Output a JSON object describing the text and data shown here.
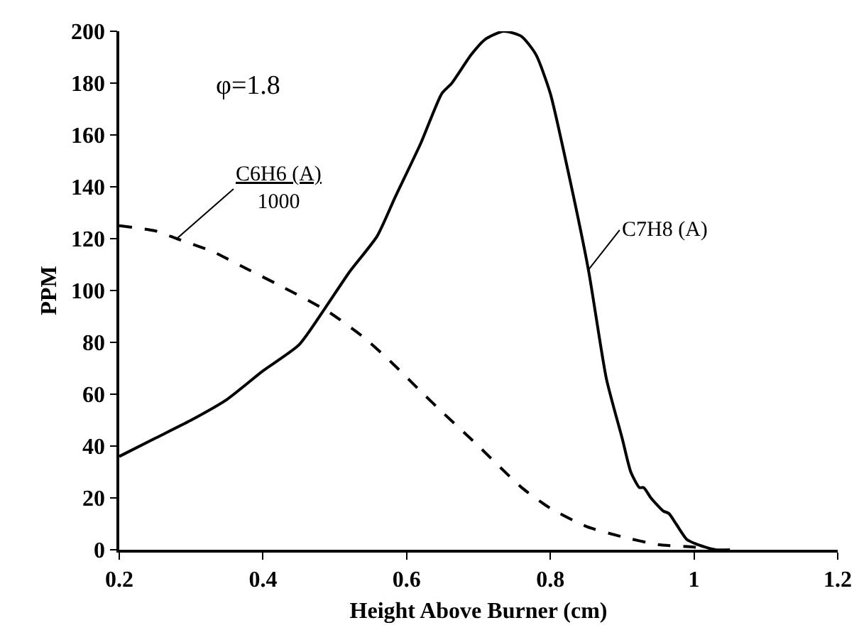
{
  "chart_data": {
    "type": "line",
    "xlabel": "Height Above Burner (cm)",
    "ylabel": "PPM",
    "annotations": [
      "φ=1.8"
    ],
    "series": [
      {
        "name": "C7H8 (A)",
        "color": "#000000",
        "line_style": "solid",
        "x": [
          0.2,
          0.25,
          0.3,
          0.35,
          0.4,
          0.45,
          0.486,
          0.52,
          0.559,
          0.584,
          0.62,
          0.649,
          0.663,
          0.69,
          0.71,
          0.735,
          0.76,
          0.78,
          0.8,
          0.82,
          0.853,
          0.878,
          0.9,
          0.912,
          0.924,
          0.93,
          0.94,
          0.957,
          0.965,
          0.975,
          0.99,
          1.005,
          1.016,
          1.03,
          1.05
        ],
        "values": [
          36,
          43,
          50,
          58,
          69,
          79,
          93,
          107,
          121,
          136,
          157,
          176,
          180,
          191,
          197,
          200,
          198,
          191,
          176,
          152,
          108,
          66,
          43,
          30,
          24,
          24,
          20,
          15,
          14,
          10,
          4,
          2,
          1,
          0,
          0
        ]
      },
      {
        "name": "C6H6 (A)\n1000",
        "color": "#000000",
        "line_style": "dashed",
        "x": [
          0.2,
          0.25,
          0.28,
          0.33,
          0.38,
          0.43,
          0.49,
          0.54,
          0.58,
          0.62,
          0.65,
          0.7,
          0.76,
          0.8,
          0.85,
          0.9,
          0.95,
          1.0,
          1.03
        ],
        "values": [
          125,
          123,
          120,
          115,
          108,
          101,
          92,
          82,
          72,
          61,
          53,
          40,
          24,
          16,
          9,
          5,
          2,
          1,
          0
        ]
      }
    ],
    "xlim": [
      0.2,
      1.2
    ],
    "xticks": [
      0.2,
      0.4,
      0.6,
      0.8,
      1,
      1.2
    ],
    "ylim": [
      0,
      200
    ],
    "yticks": [
      0,
      20,
      40,
      60,
      80,
      100,
      120,
      140,
      160,
      180,
      200
    ],
    "grid": false,
    "legend": false,
    "marker": "none"
  }
}
